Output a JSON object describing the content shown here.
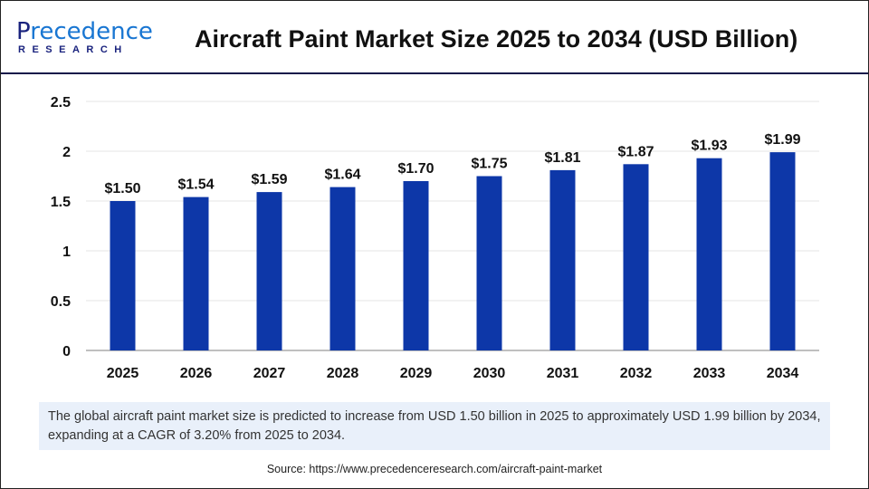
{
  "header": {
    "logo_line1": "Precedence",
    "logo_line2": "RESEARCH",
    "title": "Aircraft Paint Market Size 2025 to 2034 (USD Billion)"
  },
  "chart_data": {
    "type": "bar",
    "title": "Aircraft Paint Market Size 2025 to 2034 (USD Billion)",
    "categories": [
      "2025",
      "2026",
      "2027",
      "2028",
      "2029",
      "2030",
      "2031",
      "2032",
      "2033",
      "2034"
    ],
    "values": [
      1.5,
      1.54,
      1.59,
      1.64,
      1.7,
      1.75,
      1.81,
      1.87,
      1.93,
      1.99
    ],
    "data_labels": [
      "$1.50",
      "$1.54",
      "$1.59",
      "$1.64",
      "$1.70",
      "$1.75",
      "$1.81",
      "$1.87",
      "$1.93",
      "$1.99"
    ],
    "ylim": [
      0,
      2.5
    ],
    "yticks": [
      "0",
      "0.5",
      "1",
      "1.5",
      "2",
      "2.5"
    ],
    "grid": true,
    "bar_color": "#0d37a8"
  },
  "caption": "The global aircraft paint market size is predicted to increase from USD 1.50 billion in 2025 to approximately USD 1.99 billion by 2034, expanding at a CAGR of 3.20% from 2025 to 2034.",
  "source": "Source: https://www.precedenceresearch.com/aircraft-paint-market"
}
